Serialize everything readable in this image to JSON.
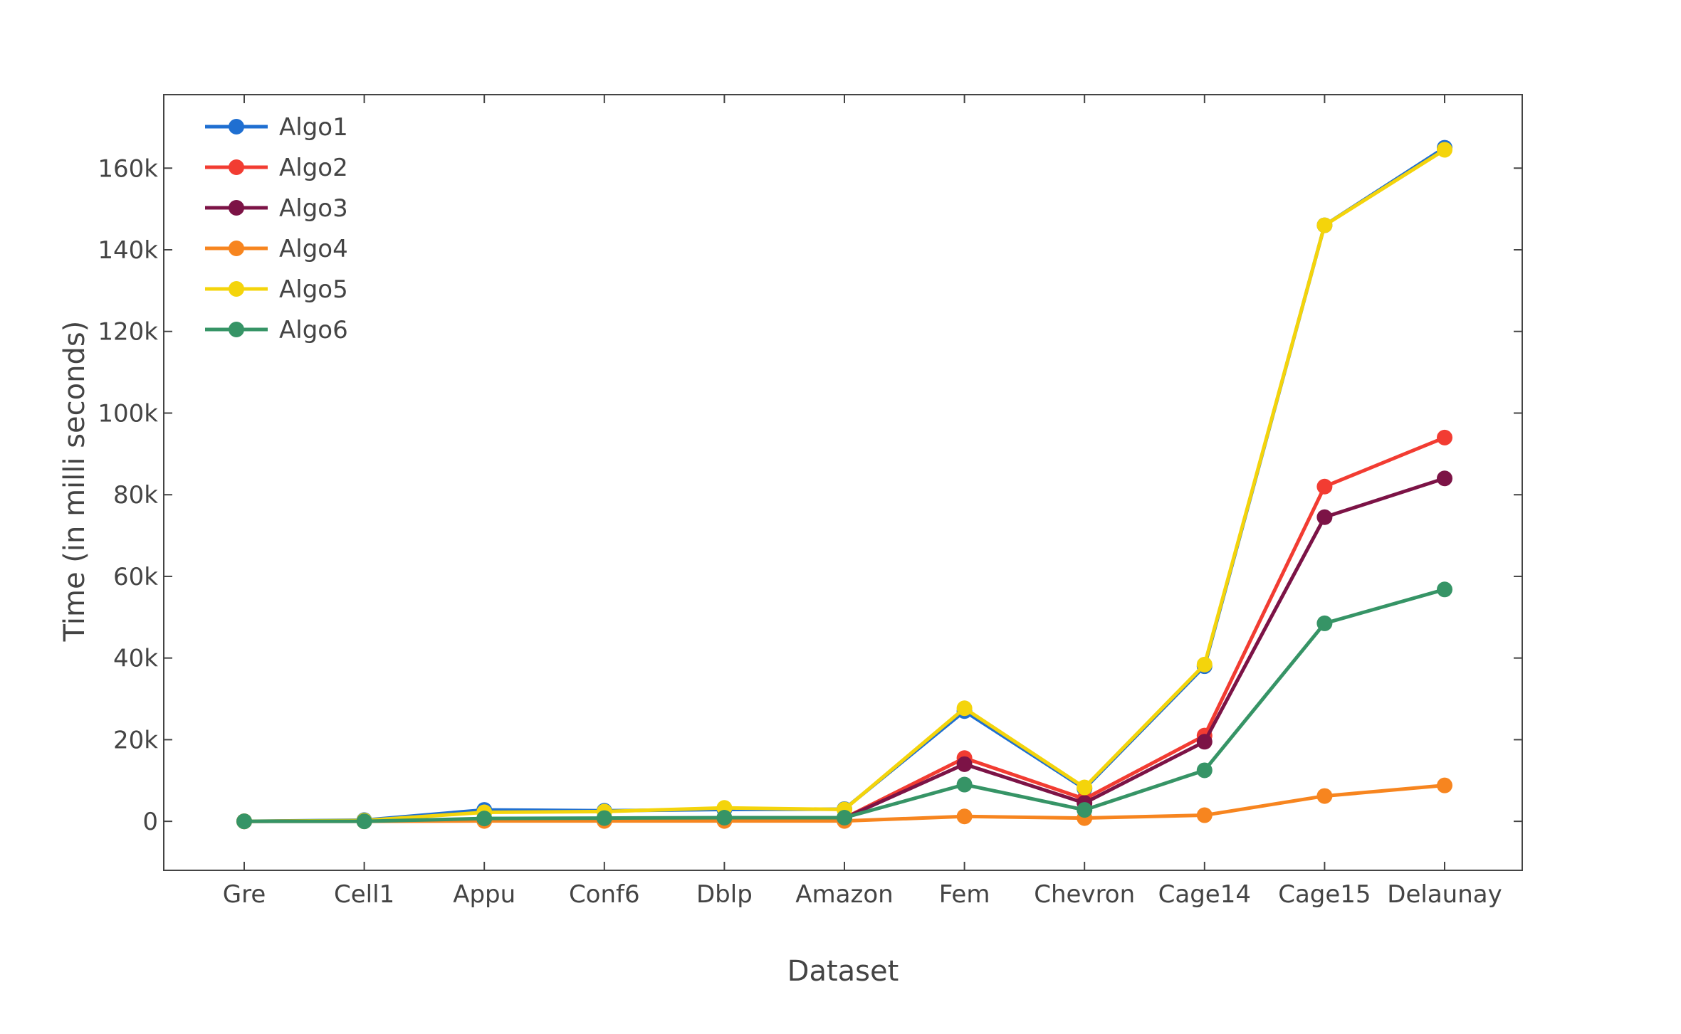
{
  "chart_data": {
    "type": "line",
    "xlabel": "Dataset",
    "ylabel": "Time (in milli seconds)",
    "categories": [
      "Gre",
      "Cell1",
      "Appu",
      "Conf6",
      "Dblp",
      "Amazon",
      "Fem",
      "Chevron",
      "Cage14",
      "Cage15",
      "Delaunay"
    ],
    "ylim": [
      -12000,
      178000
    ],
    "yticks": [
      0,
      20000,
      40000,
      60000,
      80000,
      100000,
      120000,
      140000,
      160000
    ],
    "yticklabels": [
      "0",
      "20k",
      "40k",
      "60k",
      "80k",
      "100k",
      "120k",
      "140k",
      "160k"
    ],
    "grid": false,
    "legend_position": "top-left",
    "series": [
      {
        "name": "Algo1",
        "color": "#1f6fd1",
        "values": [
          0,
          300,
          2800,
          2600,
          2900,
          3000,
          27000,
          8000,
          38000,
          146000,
          165000
        ]
      },
      {
        "name": "Algo2",
        "color": "#f23c32",
        "values": [
          0,
          100,
          500,
          600,
          700,
          800,
          15500,
          5500,
          21000,
          82000,
          94000
        ]
      },
      {
        "name": "Algo3",
        "color": "#7c1346",
        "values": [
          0,
          100,
          500,
          600,
          700,
          800,
          14000,
          4500,
          19500,
          74500,
          84000
        ]
      },
      {
        "name": "Algo4",
        "color": "#f7851f",
        "values": [
          0,
          0,
          100,
          100,
          100,
          100,
          1200,
          800,
          1500,
          6200,
          8800
        ]
      },
      {
        "name": "Algo5",
        "color": "#f4d40b",
        "values": [
          0,
          200,
          2200,
          2400,
          3300,
          2900,
          27700,
          8300,
          38400,
          146000,
          164500
        ]
      },
      {
        "name": "Algo6",
        "color": "#369466",
        "values": [
          0,
          0,
          700,
          800,
          900,
          900,
          9000,
          2800,
          12500,
          48500,
          56800
        ]
      }
    ]
  }
}
